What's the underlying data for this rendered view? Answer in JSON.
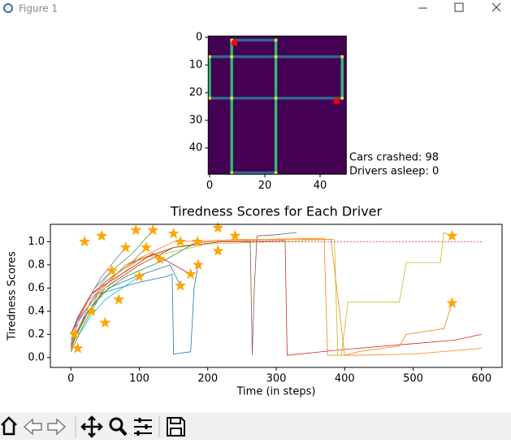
{
  "window": {
    "title": "Figure 1"
  },
  "chart_data": [
    {
      "type": "image",
      "xlim": [
        -0.5,
        49.5
      ],
      "ylim": [
        49.5,
        -0.5
      ],
      "xticks": [
        0,
        20,
        40
      ],
      "yticks": [
        0,
        10,
        20,
        30,
        40
      ],
      "background": "#440154",
      "horizontal_color": "#31688e",
      "vertical_color": "#35b779",
      "intersection_color": "#fde725",
      "roads": [
        {
          "orientation": "horizontal",
          "at": 1,
          "from": 8,
          "to": 24
        },
        {
          "orientation": "horizontal",
          "at": 7,
          "from": 0,
          "to": 48
        },
        {
          "orientation": "horizontal",
          "at": 22,
          "from": 0,
          "to": 48
        },
        {
          "orientation": "horizontal",
          "at": 49,
          "from": 8,
          "to": 24
        },
        {
          "orientation": "vertical",
          "at": 0,
          "from": 7,
          "to": 22
        },
        {
          "orientation": "vertical",
          "at": 8,
          "from": 1,
          "to": 49
        },
        {
          "orientation": "vertical",
          "at": 24,
          "from": 1,
          "to": 49
        },
        {
          "orientation": "vertical",
          "at": 48,
          "from": 7,
          "to": 22
        }
      ],
      "cars": {
        "x": [
          9,
          46
        ],
        "y": [
          2,
          23
        ],
        "color": "#ff0000"
      },
      "annotations": [
        "Cars crashed: 98",
        "Drivers asleep: 0"
      ]
    },
    {
      "type": "line",
      "title": "Tiredness Scores for Each Driver",
      "xlabel": "Time (in steps)",
      "ylabel": "Tiredness Scores",
      "xlim": [
        -30,
        630
      ],
      "ylim": [
        -0.085,
        1.15
      ],
      "xticks": [
        0,
        100,
        200,
        300,
        400,
        500,
        600
      ],
      "yticks": [
        {
          "value": 0,
          "label": "0.0"
        },
        {
          "value": 0.2,
          "label": "0.2"
        },
        {
          "value": 0.4,
          "label": "0.4"
        },
        {
          "value": 0.6,
          "label": "0.6"
        },
        {
          "value": 0.8,
          "label": "0.8"
        },
        {
          "value": 1,
          "label": "1.0"
        }
      ],
      "series": [
        {
          "color": "#1f77b4",
          "x": [
            0,
            5,
            20,
            40,
            70,
            100,
            140,
            148,
            150,
            175,
            180,
            186
          ],
          "values": [
            0.1,
            0.25,
            0.4,
            0.55,
            0.6,
            0.65,
            0.7,
            0.72,
            0.03,
            0.05,
            0.6,
            0.8
          ]
        },
        {
          "color": "#ff7f0e",
          "x": [
            0,
            10,
            30,
            60,
            100,
            150,
            200,
            280,
            370,
            375,
            420,
            500,
            560,
            600
          ],
          "values": [
            0.05,
            0.3,
            0.55,
            0.7,
            0.85,
            0.95,
            1.0,
            1.02,
            1.03,
            0.02,
            0.02,
            0.03,
            0.06,
            0.08
          ]
        },
        {
          "color": "#2ca02c",
          "x": [
            0,
            15,
            35,
            60,
            90,
            120
          ],
          "values": [
            0.2,
            0.4,
            0.6,
            0.75,
            0.9,
            1.1
          ]
        },
        {
          "color": "#d62728",
          "x": [
            0,
            20,
            50,
            100,
            150,
            220,
            310,
            313,
            316,
            400,
            500,
            560,
            600
          ],
          "values": [
            0.08,
            0.35,
            0.6,
            0.8,
            0.95,
            1.0,
            1.01,
            1.01,
            0.02,
            0.07,
            0.12,
            0.15,
            0.2
          ]
        },
        {
          "color": "#9467bd",
          "x": [
            0,
            8,
            25,
            45,
            80
          ],
          "values": [
            0.15,
            0.3,
            0.5,
            0.7,
            0.95
          ]
        },
        {
          "color": "#8c564b",
          "x": [
            0,
            30,
            80,
            150,
            220,
            262,
            265,
            268,
            272,
            300,
            330
          ],
          "values": [
            0.1,
            0.5,
            0.8,
            0.95,
            1.0,
            1.0,
            0.02,
            0.6,
            1.05,
            1.06,
            1.08
          ]
        },
        {
          "color": "#e377c2",
          "x": [
            0,
            10,
            20,
            40,
            60
          ],
          "values": [
            0.1,
            0.3,
            0.45,
            0.6,
            0.75
          ]
        },
        {
          "color": "#7f7f7f",
          "x": [
            0,
            15,
            30,
            50,
            85,
            110
          ],
          "values": [
            0.12,
            0.3,
            0.5,
            0.65,
            0.8,
            0.95
          ]
        },
        {
          "color": "#bcbd22",
          "x": [
            0,
            40,
            100,
            200,
            300,
            385,
            390,
            395,
            405,
            480,
            490,
            540,
            545,
            557
          ],
          "values": [
            0.1,
            0.55,
            0.85,
            0.98,
            1.0,
            1.02,
            0.02,
            0.02,
            0.48,
            0.48,
            0.82,
            0.82,
            1.08,
            1.05
          ]
        },
        {
          "color": "#17becf",
          "x": [
            0,
            12,
            28,
            50,
            75,
            100
          ],
          "values": [
            0.05,
            0.2,
            0.35,
            0.5,
            0.6,
            0.7
          ]
        },
        {
          "color": "#1f77b4",
          "x": [
            0,
            25,
            55,
            95,
            145,
            160
          ],
          "values": [
            0.1,
            0.4,
            0.6,
            0.7,
            0.8,
            0.62
          ]
        },
        {
          "color": "#ff7f0e",
          "x": [
            0,
            30,
            80,
            150,
            250,
            380,
            400,
            420,
            480,
            490,
            545,
            557
          ],
          "values": [
            0.1,
            0.5,
            0.8,
            1.0,
            1.02,
            1.02,
            0.02,
            0.05,
            0.1,
            0.2,
            0.25,
            0.47
          ]
        },
        {
          "color": "#2ca02c",
          "x": [
            0,
            20,
            45,
            80,
            140,
            185
          ],
          "values": [
            0.05,
            0.3,
            0.55,
            0.7,
            0.85,
            1.0
          ]
        },
        {
          "color": "#d62728",
          "x": [
            0,
            10,
            30,
            55,
            90,
            120,
            175
          ],
          "values": [
            0.2,
            0.35,
            0.55,
            0.65,
            0.78,
            0.9,
            0.72
          ]
        }
      ],
      "threshold": {
        "value": 1,
        "from": 180,
        "to": 600,
        "color": "#d62728"
      },
      "stars": {
        "color": "#ffa500",
        "x": [
          186,
          120,
          80,
          60,
          110,
          100,
          557,
          160,
          185,
          175,
          557,
          215,
          215,
          150,
          20,
          5,
          10,
          30,
          45,
          130,
          95,
          160,
          240,
          50,
          70
        ],
        "values": [
          0.8,
          1.1,
          0.95,
          0.75,
          0.95,
          0.7,
          1.05,
          0.62,
          1.0,
          0.72,
          0.47,
          1.12,
          0.92,
          1.07,
          1.0,
          0.2,
          0.08,
          0.4,
          1.05,
          0.85,
          1.1,
          1.0,
          1.05,
          0.3,
          0.5
        ]
      }
    }
  ]
}
